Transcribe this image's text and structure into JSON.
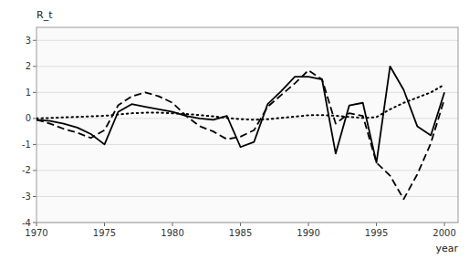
{
  "chart_data": {
    "type": "line",
    "ylabel": "R_t",
    "xlabel": "year",
    "xlim": [
      1970,
      2001
    ],
    "ylim": [
      -4,
      3.5
    ],
    "xticks": [
      1970,
      1975,
      1980,
      1985,
      1990,
      1995,
      2000
    ],
    "yticks": [
      -4,
      -3,
      -2,
      -1,
      0,
      1,
      2,
      3
    ],
    "grid": true,
    "x": [
      1970,
      1971,
      1972,
      1973,
      1974,
      1975,
      1976,
      1977,
      1978,
      1979,
      1980,
      1981,
      1982,
      1983,
      1984,
      1985,
      1986,
      1987,
      1988,
      1989,
      1990,
      1991,
      1992,
      1993,
      1994,
      1995,
      1996,
      1997,
      1998,
      1999,
      2000
    ],
    "series": [
      {
        "color": "#000000",
        "line_style": "solid",
        "values": [
          -0.05,
          -0.1,
          -0.2,
          -0.35,
          -0.6,
          -1.0,
          0.25,
          0.55,
          0.45,
          0.35,
          0.25,
          0.1,
          0.0,
          -0.05,
          0.1,
          -1.1,
          -0.9,
          0.55,
          1.05,
          1.6,
          1.6,
          1.5,
          -1.35,
          0.5,
          0.6,
          -1.7,
          2.0,
          1.1,
          -0.3,
          -0.65,
          1.0
        ]
      },
      {
        "color": "#000000",
        "line_style": "dashed",
        "values": [
          -0.05,
          -0.2,
          -0.4,
          -0.55,
          -0.75,
          -0.45,
          0.5,
          0.85,
          1.0,
          0.85,
          0.6,
          0.1,
          -0.3,
          -0.5,
          -0.8,
          -0.7,
          -0.45,
          0.45,
          0.9,
          1.35,
          1.85,
          1.5,
          -0.2,
          0.2,
          0.1,
          -1.7,
          -2.2,
          -3.1,
          -2.15,
          -0.95,
          0.75
        ]
      },
      {
        "color": "#000000",
        "line_style": "dotted",
        "values": [
          0.0,
          0.02,
          0.04,
          0.06,
          0.08,
          0.1,
          0.15,
          0.2,
          0.22,
          0.22,
          0.2,
          0.17,
          0.13,
          0.08,
          0.02,
          -0.03,
          -0.05,
          -0.03,
          0.02,
          0.07,
          0.12,
          0.13,
          0.1,
          0.06,
          0.02,
          0.05,
          0.35,
          0.6,
          0.8,
          1.0,
          1.3
        ]
      }
    ]
  }
}
